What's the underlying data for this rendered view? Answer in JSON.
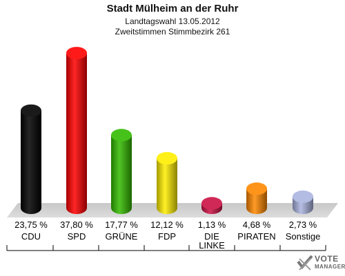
{
  "chart_data": {
    "type": "bar",
    "title": "Stadt Mülheim an der Ruhr",
    "subtitle_1": "Landtagswahl 13.05.2012",
    "subtitle_2": "Zweitstimmen Stimmbezirk 261",
    "categories": [
      "CDU",
      "SPD",
      "GRÜNE",
      "FDP",
      "DIE LINKE",
      "PIRATEN",
      "Sonstige"
    ],
    "values": [
      23.75,
      37.8,
      17.77,
      12.12,
      1.13,
      4.68,
      2.73
    ],
    "value_labels": [
      "23,75 %",
      "37,80 %",
      "17,77 %",
      "12,12 %",
      "1,13 %",
      "4,68 %",
      "2,73 %"
    ],
    "colors": [
      "#000000",
      "#ff0000",
      "#33bb00",
      "#ffee00",
      "#cc1144",
      "#ff8800",
      "#aab4e0"
    ],
    "ylim": [
      0,
      40
    ],
    "grid": false,
    "legend": "none"
  },
  "brand": {
    "line1": "VOTE",
    "line2": "MANAGER"
  }
}
